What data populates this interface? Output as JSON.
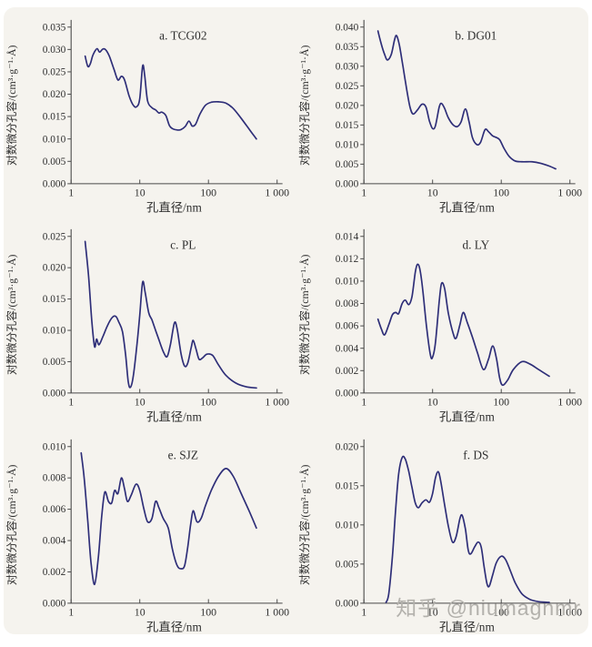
{
  "page": {
    "background": "#f5f3ee",
    "watermark": "知乎 @niumagnmr"
  },
  "chart_data": [
    {
      "type": "line",
      "id": "a",
      "title": "a. TCG02",
      "xlabel": "孔直径/nm",
      "ylabel": "对数微分孔容/(cm³·g⁻¹·Å)",
      "xscale": "log",
      "xlim": [
        1,
        1000
      ],
      "xticks": [
        {
          "v": 1,
          "label": "1"
        },
        {
          "v": 10,
          "label": "10"
        },
        {
          "v": 100,
          "label": "100"
        },
        {
          "v": 1000,
          "label": "1 000"
        }
      ],
      "ylim": [
        0,
        0.035
      ],
      "ystep": 0.005,
      "line_color": "#2e2e78",
      "grid": false,
      "legend": "none",
      "points": [
        [
          1.6,
          0.0285
        ],
        [
          1.75,
          0.0262
        ],
        [
          1.9,
          0.0268
        ],
        [
          2.05,
          0.0285
        ],
        [
          2.2,
          0.0295
        ],
        [
          2.4,
          0.0302
        ],
        [
          2.6,
          0.0294
        ],
        [
          2.9,
          0.0301
        ],
        [
          3.2,
          0.0299
        ],
        [
          3.6,
          0.0285
        ],
        [
          4.2,
          0.0256
        ],
        [
          4.8,
          0.0232
        ],
        [
          5.4,
          0.024
        ],
        [
          6.0,
          0.0232
        ],
        [
          7.0,
          0.0196
        ],
        [
          8.0,
          0.0176
        ],
        [
          9.0,
          0.0172
        ],
        [
          10.0,
          0.019
        ],
        [
          11.0,
          0.0263
        ],
        [
          11.8,
          0.0242
        ],
        [
          13.0,
          0.0185
        ],
        [
          15.0,
          0.017
        ],
        [
          17.0,
          0.0165
        ],
        [
          19.0,
          0.0158
        ],
        [
          21.0,
          0.016
        ],
        [
          24.0,
          0.0152
        ],
        [
          27.0,
          0.013
        ],
        [
          30.0,
          0.0123
        ],
        [
          35.0,
          0.012
        ],
        [
          40.0,
          0.0121
        ],
        [
          46.0,
          0.0128
        ],
        [
          52.0,
          0.014
        ],
        [
          58.0,
          0.0129
        ],
        [
          65.0,
          0.0133
        ],
        [
          75.0,
          0.0155
        ],
        [
          90.0,
          0.0175
        ],
        [
          110.0,
          0.0182
        ],
        [
          140.0,
          0.0183
        ],
        [
          180.0,
          0.018
        ],
        [
          230.0,
          0.0168
        ],
        [
          300.0,
          0.0146
        ],
        [
          400.0,
          0.012
        ],
        [
          500.0,
          0.01
        ]
      ]
    },
    {
      "type": "line",
      "id": "b",
      "title": "b. DG01",
      "xlabel": "孔直径/nm",
      "ylabel": "对数微分孔容/(cm³·g⁻¹·Å)",
      "xscale": "log",
      "xlim": [
        1,
        1000
      ],
      "xticks": [
        {
          "v": 1,
          "label": "1"
        },
        {
          "v": 10,
          "label": "10"
        },
        {
          "v": 100,
          "label": "100"
        },
        {
          "v": 1000,
          "label": "1 000"
        }
      ],
      "ylim": [
        0,
        0.04
      ],
      "ystep": 0.005,
      "line_color": "#2e2e78",
      "grid": false,
      "legend": "none",
      "points": [
        [
          1.6,
          0.039
        ],
        [
          1.8,
          0.0355
        ],
        [
          2.0,
          0.033
        ],
        [
          2.2,
          0.0316
        ],
        [
          2.5,
          0.033
        ],
        [
          2.8,
          0.0368
        ],
        [
          3.0,
          0.0378
        ],
        [
          3.3,
          0.0352
        ],
        [
          3.7,
          0.03
        ],
        [
          4.2,
          0.024
        ],
        [
          4.7,
          0.0195
        ],
        [
          5.2,
          0.0178
        ],
        [
          6.0,
          0.0188
        ],
        [
          7.0,
          0.0203
        ],
        [
          8.0,
          0.0196
        ],
        [
          9.0,
          0.016
        ],
        [
          10.0,
          0.0141
        ],
        [
          11.0,
          0.0148
        ],
        [
          12.5,
          0.0196
        ],
        [
          13.5,
          0.0205
        ],
        [
          15.0,
          0.0192
        ],
        [
          17.0,
          0.0168
        ],
        [
          20.0,
          0.015
        ],
        [
          23.0,
          0.0146
        ],
        [
          26.0,
          0.0158
        ],
        [
          30.0,
          0.0191
        ],
        [
          34.0,
          0.0158
        ],
        [
          38.0,
          0.0118
        ],
        [
          44.0,
          0.01
        ],
        [
          50.0,
          0.0106
        ],
        [
          58.0,
          0.0138
        ],
        [
          65.0,
          0.0133
        ],
        [
          75.0,
          0.0122
        ],
        [
          85.0,
          0.0118
        ],
        [
          95.0,
          0.0112
        ],
        [
          110.0,
          0.009
        ],
        [
          130.0,
          0.007
        ],
        [
          160.0,
          0.0058
        ],
        [
          200.0,
          0.0056
        ],
        [
          280.0,
          0.0056
        ],
        [
          380.0,
          0.0052
        ],
        [
          500.0,
          0.0045
        ],
        [
          620.0,
          0.0038
        ]
      ]
    },
    {
      "type": "line",
      "id": "c",
      "title": "c. PL",
      "xlabel": "孔直径/nm",
      "ylabel": "对数微分孔容/(cm³·g⁻¹·Å)",
      "xscale": "log",
      "xlim": [
        1,
        1000
      ],
      "xticks": [
        {
          "v": 1,
          "label": "1"
        },
        {
          "v": 10,
          "label": "10"
        },
        {
          "v": 100,
          "label": "100"
        },
        {
          "v": 1000,
          "label": "1 000"
        }
      ],
      "ylim": [
        0,
        0.025
      ],
      "ystep": 0.005,
      "line_color": "#2e2e78",
      "grid": false,
      "legend": "none",
      "points": [
        [
          1.6,
          0.0242
        ],
        [
          1.8,
          0.0185
        ],
        [
          2.0,
          0.0115
        ],
        [
          2.2,
          0.0074
        ],
        [
          2.35,
          0.0086
        ],
        [
          2.55,
          0.0077
        ],
        [
          2.9,
          0.009
        ],
        [
          3.4,
          0.0108
        ],
        [
          4.0,
          0.0121
        ],
        [
          4.5,
          0.0122
        ],
        [
          5.0,
          0.0112
        ],
        [
          5.6,
          0.0098
        ],
        [
          6.2,
          0.0062
        ],
        [
          6.8,
          0.0018
        ],
        [
          7.3,
          0.0009
        ],
        [
          8.0,
          0.0025
        ],
        [
          9.0,
          0.0072
        ],
        [
          10.0,
          0.0124
        ],
        [
          11.0,
          0.0177
        ],
        [
          12.0,
          0.016
        ],
        [
          13.5,
          0.0128
        ],
        [
          15.0,
          0.0117
        ],
        [
          17.0,
          0.01
        ],
        [
          19.0,
          0.0085
        ],
        [
          22.0,
          0.0066
        ],
        [
          25.0,
          0.0058
        ],
        [
          28.0,
          0.0078
        ],
        [
          32.0,
          0.0112
        ],
        [
          35.0,
          0.0102
        ],
        [
          40.0,
          0.0062
        ],
        [
          45.0,
          0.0043
        ],
        [
          50.0,
          0.0048
        ],
        [
          56.0,
          0.0072
        ],
        [
          60.0,
          0.0084
        ],
        [
          66.0,
          0.007
        ],
        [
          73.0,
          0.0054
        ],
        [
          82.0,
          0.0056
        ],
        [
          95.0,
          0.0062
        ],
        [
          115.0,
          0.006
        ],
        [
          140.0,
          0.0045
        ],
        [
          180.0,
          0.0028
        ],
        [
          250.0,
          0.0016
        ],
        [
          350.0,
          0.001
        ],
        [
          500.0,
          0.0008
        ]
      ]
    },
    {
      "type": "line",
      "id": "d",
      "title": "d. LY",
      "xlabel": "孔直径/nm",
      "ylabel": "对数微分孔容/(cm³·g⁻¹·Å)",
      "xscale": "log",
      "xlim": [
        1,
        1000
      ],
      "xticks": [
        {
          "v": 1,
          "label": "1"
        },
        {
          "v": 10,
          "label": "10"
        },
        {
          "v": 100,
          "label": "100"
        },
        {
          "v": 1000,
          "label": "1 000"
        }
      ],
      "ylim": [
        0,
        0.014
      ],
      "ystep": 0.002,
      "line_color": "#2e2e78",
      "grid": false,
      "legend": "none",
      "points": [
        [
          1.6,
          0.0066
        ],
        [
          1.8,
          0.0057
        ],
        [
          2.0,
          0.0052
        ],
        [
          2.3,
          0.0061
        ],
        [
          2.6,
          0.007
        ],
        [
          2.9,
          0.0072
        ],
        [
          3.2,
          0.0071
        ],
        [
          3.6,
          0.008
        ],
        [
          4.0,
          0.0083
        ],
        [
          4.5,
          0.0079
        ],
        [
          5.0,
          0.0086
        ],
        [
          5.6,
          0.0108
        ],
        [
          6.0,
          0.0115
        ],
        [
          6.5,
          0.0111
        ],
        [
          7.2,
          0.0092
        ],
        [
          8.2,
          0.0058
        ],
        [
          9.3,
          0.0034
        ],
        [
          10.0,
          0.0032
        ],
        [
          11.0,
          0.0045
        ],
        [
          12.5,
          0.0082
        ],
        [
          13.5,
          0.0098
        ],
        [
          15.0,
          0.0093
        ],
        [
          17.0,
          0.0071
        ],
        [
          20.0,
          0.0053
        ],
        [
          22.0,
          0.0049
        ],
        [
          25.0,
          0.0061
        ],
        [
          28.0,
          0.0072
        ],
        [
          32.0,
          0.0063
        ],
        [
          38.0,
          0.005
        ],
        [
          45.0,
          0.0036
        ],
        [
          55.0,
          0.0021
        ],
        [
          65.0,
          0.003
        ],
        [
          75.0,
          0.0042
        ],
        [
          85.0,
          0.0031
        ],
        [
          95.0,
          0.0013
        ],
        [
          105.0,
          0.0007
        ],
        [
          125.0,
          0.0012
        ],
        [
          150.0,
          0.0021
        ],
        [
          200.0,
          0.0028
        ],
        [
          260.0,
          0.0026
        ],
        [
          350.0,
          0.0021
        ],
        [
          500.0,
          0.0015
        ]
      ]
    },
    {
      "type": "line",
      "id": "e",
      "title": "e. SJZ",
      "xlabel": "孔直径/nm",
      "ylabel": "对数微分孔容/(cm³·g⁻¹·Å)",
      "xscale": "log",
      "xlim": [
        1,
        1000
      ],
      "xticks": [
        {
          "v": 1,
          "label": "1"
        },
        {
          "v": 10,
          "label": "10"
        },
        {
          "v": 100,
          "label": "100"
        },
        {
          "v": 1000,
          "label": "1 000"
        }
      ],
      "ylim": [
        0,
        0.01
      ],
      "ystep": 0.002,
      "line_color": "#2e2e78",
      "grid": false,
      "legend": "none",
      "points": [
        [
          1.4,
          0.0096
        ],
        [
          1.55,
          0.008
        ],
        [
          1.75,
          0.0052
        ],
        [
          1.95,
          0.0026
        ],
        [
          2.2,
          0.0012
        ],
        [
          2.5,
          0.003
        ],
        [
          2.8,
          0.0056
        ],
        [
          3.1,
          0.0071
        ],
        [
          3.5,
          0.0065
        ],
        [
          3.9,
          0.0064
        ],
        [
          4.3,
          0.0072
        ],
        [
          4.8,
          0.007
        ],
        [
          5.4,
          0.008
        ],
        [
          6.0,
          0.0073
        ],
        [
          6.6,
          0.0065
        ],
        [
          7.5,
          0.0069
        ],
        [
          8.8,
          0.0076
        ],
        [
          10.0,
          0.0072
        ],
        [
          11.5,
          0.006
        ],
        [
          13.0,
          0.0052
        ],
        [
          15.0,
          0.0054
        ],
        [
          17.0,
          0.0065
        ],
        [
          19.0,
          0.0061
        ],
        [
          22.0,
          0.0054
        ],
        [
          26.0,
          0.0048
        ],
        [
          30.0,
          0.0034
        ],
        [
          35.0,
          0.0024
        ],
        [
          40.0,
          0.0022
        ],
        [
          45.0,
          0.0024
        ],
        [
          50.0,
          0.0036
        ],
        [
          55.0,
          0.005
        ],
        [
          60.0,
          0.0059
        ],
        [
          68.0,
          0.0052
        ],
        [
          78.0,
          0.0054
        ],
        [
          90.0,
          0.0062
        ],
        [
          110.0,
          0.0072
        ],
        [
          140.0,
          0.0081
        ],
        [
          180.0,
          0.0086
        ],
        [
          230.0,
          0.0081
        ],
        [
          300.0,
          0.007
        ],
        [
          400.0,
          0.0058
        ],
        [
          500.0,
          0.0048
        ]
      ]
    },
    {
      "type": "line",
      "id": "f",
      "title": "f. DS",
      "xlabel": "孔直径/nm",
      "ylabel": "对数微分孔容/(cm³·g⁻¹·Å)",
      "xscale": "log",
      "xlim": [
        1,
        1000
      ],
      "xticks": [
        {
          "v": 1,
          "label": "1"
        },
        {
          "v": 10,
          "label": "10"
        },
        {
          "v": 100,
          "label": "100"
        },
        {
          "v": 1000,
          "label": "1 000"
        }
      ],
      "ylim": [
        0,
        0.02
      ],
      "ystep": 0.005,
      "line_color": "#2e2e78",
      "grid": false,
      "legend": "none",
      "points": [
        [
          2.1,
          0.0001
        ],
        [
          2.3,
          0.0012
        ],
        [
          2.6,
          0.006
        ],
        [
          2.9,
          0.012
        ],
        [
          3.2,
          0.0165
        ],
        [
          3.6,
          0.0186
        ],
        [
          4.0,
          0.0184
        ],
        [
          4.5,
          0.0168
        ],
        [
          5.0,
          0.0148
        ],
        [
          5.6,
          0.0128
        ],
        [
          6.2,
          0.0122
        ],
        [
          7.0,
          0.0128
        ],
        [
          8.0,
          0.0132
        ],
        [
          9.0,
          0.0129
        ],
        [
          10.0,
          0.014
        ],
        [
          11.0,
          0.016
        ],
        [
          12.0,
          0.0168
        ],
        [
          13.0,
          0.0158
        ],
        [
          15.0,
          0.0125
        ],
        [
          17.0,
          0.0098
        ],
        [
          19.5,
          0.0078
        ],
        [
          22.0,
          0.0085
        ],
        [
          25.0,
          0.0108
        ],
        [
          27.0,
          0.0112
        ],
        [
          30.0,
          0.0095
        ],
        [
          33.0,
          0.0068
        ],
        [
          36.0,
          0.0063
        ],
        [
          41.0,
          0.0072
        ],
        [
          46.0,
          0.0078
        ],
        [
          51.0,
          0.0072
        ],
        [
          56.0,
          0.0048
        ],
        [
          62.0,
          0.0025
        ],
        [
          67.0,
          0.0022
        ],
        [
          75.0,
          0.0036
        ],
        [
          85.0,
          0.0052
        ],
        [
          100.0,
          0.006
        ],
        [
          115.0,
          0.0056
        ],
        [
          135.0,
          0.0042
        ],
        [
          160.0,
          0.0026
        ],
        [
          200.0,
          0.0012
        ],
        [
          260.0,
          0.0005
        ],
        [
          350.0,
          0.0002
        ],
        [
          500.0,
          0.0001
        ]
      ]
    }
  ]
}
